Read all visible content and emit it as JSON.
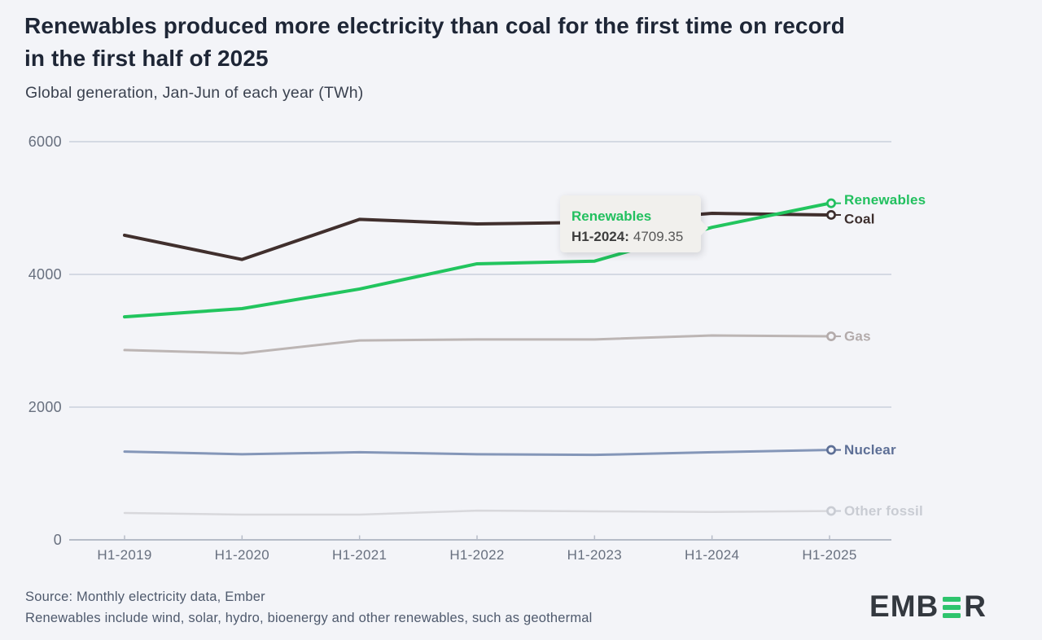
{
  "header": {
    "title_lines": [
      "Renewables produced more electricity than coal for the first time on record",
      "in the first half of 2025"
    ],
    "subtitle": "Global generation, Jan-Jun of each year (TWh)"
  },
  "tooltip": {
    "series": "Renewables",
    "point_label": "H1-2024:",
    "value": "4709.35"
  },
  "footer": {
    "source": "Source: Monthly electricity data, Ember",
    "note": "Renewables include wind, solar, hydro, bioenergy and other renewables, such as geothermal"
  },
  "logo": {
    "prefix": "EMB",
    "suffix": "R"
  },
  "colors": {
    "background": "#f3f4f8",
    "grid": "#cad0dc",
    "axis": "#b6bcc8",
    "title": "#1e2636",
    "axis_text": "#68707f",
    "tooltip_bg": "#f1f0ed",
    "logo_green": "#2ec46d"
  },
  "chart_data": {
    "type": "line",
    "title": "Renewables produced more electricity than coal for the first time on record in the first half of 2025",
    "subtitle": "Global generation, Jan-Jun of each year (TWh)",
    "xlabel": "",
    "ylabel": "TWh",
    "ylim": [
      0,
      6000
    ],
    "yticks": [
      0,
      2000,
      4000,
      6000
    ],
    "grid": true,
    "legend_position": "end-of-line",
    "categories": [
      "H1-2019",
      "H1-2020",
      "H1-2021",
      "H1-2022",
      "H1-2023",
      "H1-2024",
      "H1-2025"
    ],
    "series": [
      {
        "name": "Renewables",
        "color": "#22c55e",
        "label_color": "#22c05f",
        "stroke_width": 4,
        "label_dy": -4,
        "values": [
          3360,
          3485,
          3780,
          4160,
          4200,
          4709.35,
          5072
        ]
      },
      {
        "name": "Coal",
        "color": "#402f2d",
        "label_color": "#3c2e2d",
        "stroke_width": 4,
        "label_dy": 5,
        "values": [
          4590,
          4225,
          4830,
          4760,
          4785,
          4920,
          4896
        ]
      },
      {
        "name": "Gas",
        "color": "#bcb5b4",
        "label_color": "#b3abab",
        "stroke_width": 3,
        "label_dy": 0,
        "values": [
          2860,
          2810,
          3005,
          3020,
          3020,
          3080,
          3067
        ]
      },
      {
        "name": "Nuclear",
        "color": "#8496b8",
        "label_color": "#5d6f96",
        "stroke_width": 3,
        "label_dy": 0,
        "values": [
          1330,
          1290,
          1320,
          1290,
          1280,
          1320,
          1355
        ]
      },
      {
        "name": "Other fossil",
        "color": "#d8d8dc",
        "label_color": "#c9ccd3",
        "stroke_width": 2.5,
        "label_dy": 0,
        "values": [
          405,
          380,
          380,
          440,
          430,
          420,
          435
        ]
      }
    ],
    "hover_tooltip": {
      "series": "Renewables",
      "x": "H1-2024",
      "y": 4709.35
    }
  }
}
